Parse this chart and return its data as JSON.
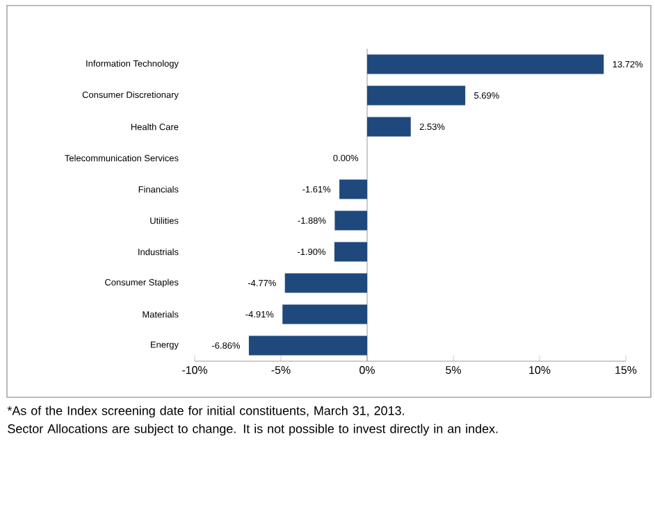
{
  "chart_data": {
    "type": "bar",
    "orientation": "horizontal",
    "categories": [
      "Information Technology",
      "Consumer Discretionary",
      "Health Care",
      "Telecommunication Services",
      "Financials",
      "Utilities",
      "Industrials",
      "Consumer Staples",
      "Materials",
      "Energy"
    ],
    "values": [
      13.72,
      5.69,
      2.53,
      0.0,
      -1.61,
      -1.88,
      -1.9,
      -4.77,
      -4.91,
      -6.86
    ],
    "value_labels": [
      "13.72%",
      "5.69%",
      "2.53%",
      "0.00%",
      "-1.61%",
      "-1.88%",
      "-1.90%",
      "-4.77%",
      "-4.91%",
      "-6.86%"
    ],
    "color": "#1f497d",
    "xlim": [
      -10,
      15
    ],
    "xticks": [
      {
        "value": -10,
        "label": "-10%"
      },
      {
        "value": -5,
        "label": "-5%"
      },
      {
        "value": 0,
        "label": "0%"
      },
      {
        "value": 5,
        "label": "5%"
      },
      {
        "value": 10,
        "label": "10%"
      },
      {
        "value": 15,
        "label": "15%"
      }
    ],
    "annotations": [
      "*As of the Index screening date for initial constituents, March 31, 2013.",
      "Sector Allocations are subject to change. It is not possible to invest directly in an index."
    ]
  }
}
